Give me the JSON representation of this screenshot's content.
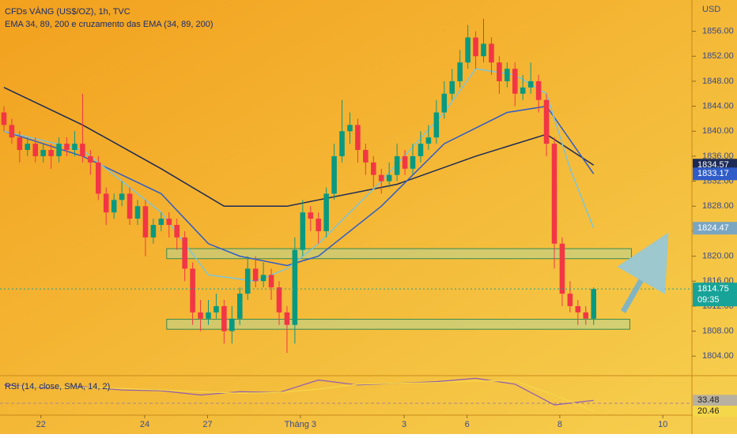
{
  "chart_data": {
    "type": "candlestick",
    "title": "CFDs VÀNG (US$/OZ), 1h, TVC",
    "subtitle": "EMA 34, 89, 200 e cruzamento das EMA (34, 89, 200)",
    "currency": "USD",
    "up_color": "#089981",
    "down_color": "#f23645",
    "xlim": [
      -0.5,
      87.5
    ],
    "xticks": [
      {
        "value": 4.7,
        "label": "22"
      },
      {
        "value": 17.9,
        "label": "24"
      },
      {
        "value": 25.9,
        "label": "27"
      },
      {
        "value": 37.7,
        "label": "Tháng 3"
      },
      {
        "value": 50.9,
        "label": "3"
      },
      {
        "value": 58.9,
        "label": "6"
      },
      {
        "value": 70.7,
        "label": "8"
      },
      {
        "value": 83.8,
        "label": "10"
      }
    ],
    "ylim": [
      1801,
      1861
    ],
    "yticks": [
      {
        "value": 1804,
        "label": "1804.00"
      },
      {
        "value": 1808,
        "label": "1808.00"
      },
      {
        "value": 1812,
        "label": "1812.00"
      },
      {
        "value": 1816,
        "label": "1816.00"
      },
      {
        "value": 1820,
        "label": "1820.00"
      },
      {
        "value": 1824,
        "label": "1824.00"
      },
      {
        "value": 1828,
        "label": "1828.00"
      },
      {
        "value": 1832,
        "label": "1832.00"
      },
      {
        "value": 1836,
        "label": "1836.00"
      },
      {
        "value": 1840,
        "label": "1840.00"
      },
      {
        "value": 1844,
        "label": "1844.00"
      },
      {
        "value": 1848,
        "label": "1848.00"
      },
      {
        "value": 1852,
        "label": "1852.00"
      },
      {
        "value": 1856,
        "label": "1856.00"
      }
    ],
    "open": [
      1843,
      1841,
      1839,
      1837,
      1838,
      1836,
      1837,
      1836,
      1838,
      1837,
      1838,
      1836,
      1835,
      1830,
      1827,
      1829,
      1830,
      1826,
      1828,
      1823,
      1825,
      1826,
      1825,
      1823,
      1818,
      1811,
      1810,
      1811,
      1812,
      1808,
      1810,
      1814,
      1818,
      1816,
      1817,
      1815,
      1811,
      1809,
      1821,
      1827,
      1826,
      1824,
      1830,
      1836,
      1840,
      1841,
      1837,
      1835,
      1833,
      1832,
      1833,
      1836,
      1834,
      1836,
      1838,
      1839,
      1843,
      1846,
      1848,
      1851,
      1855,
      1852,
      1854,
      1851,
      1848,
      1850,
      1846,
      1847,
      1848,
      1845,
      1838,
      1822,
      1814,
      1812,
      1811,
      1810
    ],
    "high": [
      1844,
      1842,
      1840,
      1839,
      1839,
      1838,
      1838,
      1839,
      1839,
      1840,
      1846,
      1837,
      1836,
      1831,
      1830,
      1832,
      1831,
      1829,
      1829,
      1826,
      1827,
      1827,
      1826,
      1824,
      1819,
      1813,
      1813,
      1814,
      1813,
      1812,
      1815,
      1820,
      1820,
      1819,
      1818,
      1816,
      1812,
      1823,
      1829,
      1828,
      1827,
      1831,
      1838,
      1845,
      1843,
      1842,
      1838,
      1836,
      1834,
      1835,
      1838,
      1837,
      1838,
      1840,
      1841,
      1845,
      1848,
      1850,
      1853,
      1857,
      1856,
      1858,
      1855,
      1852,
      1851,
      1851,
      1849,
      1851,
      1849,
      1846,
      1839,
      1823,
      1816,
      1813,
      1812,
      1815
    ],
    "low": [
      1840,
      1838,
      1835,
      1836,
      1835,
      1835,
      1834,
      1835,
      1836,
      1836,
      1835,
      1833,
      1829,
      1825,
      1826,
      1828,
      1825,
      1825,
      1820,
      1822,
      1824,
      1823,
      1821,
      1816,
      1809,
      1808,
      1809,
      1810,
      1806,
      1806,
      1809,
      1813,
      1815,
      1815,
      1813,
      1809,
      1804.5,
      1806,
      1820,
      1824,
      1822,
      1823,
      1829,
      1835,
      1838,
      1835,
      1833,
      1831,
      1830,
      1831,
      1832,
      1833,
      1833,
      1835,
      1837,
      1838,
      1842,
      1845,
      1847,
      1850,
      1850,
      1851,
      1849,
      1846,
      1847,
      1844,
      1845,
      1846,
      1843,
      1836,
      1818,
      1812,
      1811,
      1809,
      1809,
      1809
    ],
    "close": [
      1841,
      1839,
      1837,
      1838,
      1836,
      1837,
      1836,
      1838,
      1837,
      1838,
      1836,
      1835,
      1830,
      1827,
      1829,
      1830,
      1826,
      1828,
      1823,
      1825,
      1826,
      1825,
      1823,
      1818,
      1811,
      1810,
      1811,
      1812,
      1808,
      1810,
      1814,
      1818,
      1816,
      1817,
      1815,
      1811,
      1809,
      1821,
      1827,
      1826,
      1824,
      1830,
      1836,
      1840,
      1841,
      1837,
      1835,
      1833,
      1832,
      1833,
      1836,
      1834,
      1836,
      1838,
      1839,
      1843,
      1846,
      1848,
      1851,
      1855,
      1852,
      1854,
      1851,
      1848,
      1850,
      1846,
      1847,
      1848,
      1845,
      1838,
      1822,
      1814,
      1812,
      1811,
      1810,
      1814.75
    ],
    "lines": [
      {
        "color": "#1c2a55",
        "x": [
          0,
          10,
          20,
          28,
          36,
          40,
          50,
          60,
          69,
          75
        ],
        "values": [
          1847,
          1841,
          1834,
          1828,
          1828,
          1829,
          1831.5,
          1836,
          1839.5,
          1834.57
        ]
      },
      {
        "color": "#2f5cc8",
        "x": [
          0,
          10,
          20,
          26,
          30,
          36,
          40,
          48,
          56,
          64,
          69,
          75
        ],
        "values": [
          1840,
          1836,
          1830,
          1822,
          1820,
          1818.5,
          1820,
          1828,
          1838,
          1843,
          1844,
          1833.17
        ]
      },
      {
        "color": "#7fc4d6",
        "x": [
          0,
          10,
          20,
          26,
          32,
          36,
          40,
          48,
          56,
          60,
          65,
          69,
          72,
          75
        ],
        "values": [
          1840,
          1837,
          1827,
          1817,
          1816,
          1818,
          1822,
          1832,
          1843,
          1850,
          1849,
          1846,
          1834,
          1824.47
        ]
      }
    ],
    "zones": [
      {
        "x": [
          20.7,
          79.8
        ],
        "y": [
          1819.6,
          1821.2
        ]
      },
      {
        "x": [
          20.7,
          79.6
        ],
        "y": [
          1808.3,
          1809.9
        ]
      }
    ],
    "price_tags": [
      {
        "value": 1834.57,
        "color": "#1c2a55"
      },
      {
        "value": 1833.17,
        "color": "#2f5cc8"
      },
      {
        "value": 1824.47,
        "color": "#7aa6c2"
      }
    ],
    "last_price": {
      "value": 1814.75,
      "countdown": "09:35",
      "color": "#17a398"
    },
    "rsi": {
      "label": "RSI (14, close, SMA, 14, 2)",
      "ylim": [
        16.7,
        62.3
      ],
      "level": 30,
      "x": [
        0,
        5,
        10,
        15,
        20,
        25,
        30,
        35,
        40,
        45,
        50,
        55,
        60,
        65,
        70,
        75
      ],
      "series": [
        {
          "name": "RSI",
          "color": "#8e5ab5",
          "values": [
            52,
            49,
            50,
            46,
            45,
            40,
            44,
            43,
            58,
            52,
            54,
            56,
            60,
            53,
            28,
            33.48
          ],
          "tag_color": "#b8b0a0"
        },
        {
          "name": "SMA",
          "color": "#f5d84a",
          "values": [
            50,
            50,
            49,
            48,
            46,
            44,
            42,
            43,
            47,
            53,
            54,
            55,
            57,
            57,
            40,
            20.46
          ],
          "tag_color": "#f5d84a"
        }
      ]
    }
  }
}
